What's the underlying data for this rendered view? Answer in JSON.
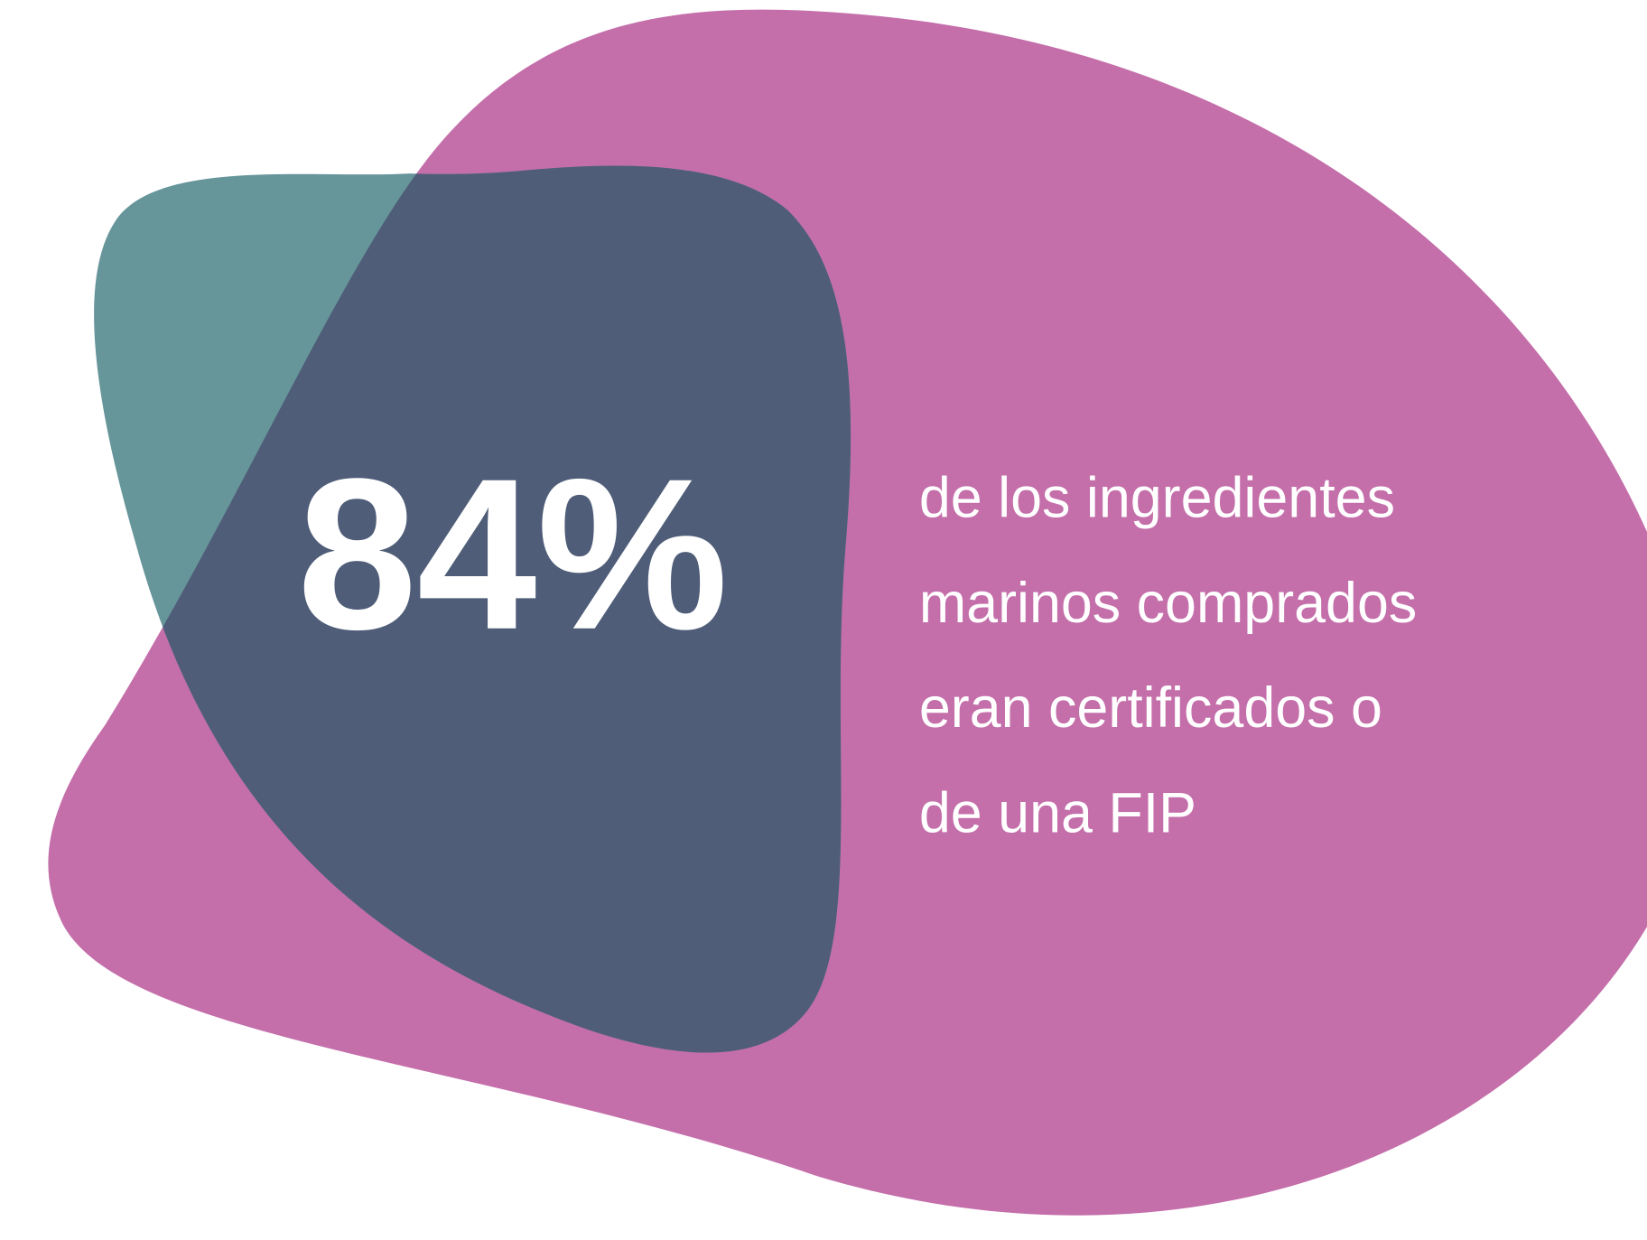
{
  "stat": {
    "value": "84%"
  },
  "description": [
    "de los ingredientes",
    "marinos comprados",
    "eran certificados o",
    "de una FIP"
  ]
}
